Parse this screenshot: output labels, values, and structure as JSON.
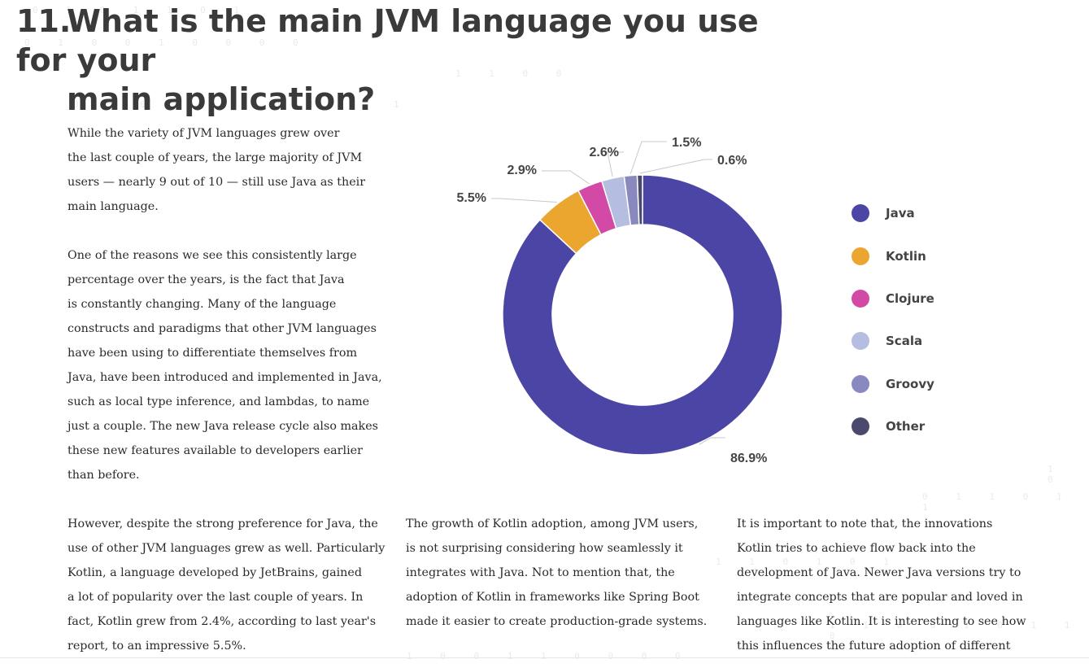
{
  "title": {
    "number": "11.",
    "line1": "What is the main JVM language you use for your",
    "line2": "main application?"
  },
  "paragraphs": {
    "p1": [
      "While the variety of JVM languages grew over",
      "the last couple of years, the large majority of JVM",
      "users — nearly 9 out of 10 — still use Java as their",
      "main language."
    ],
    "p2": [
      "One of the reasons we see this consistently large",
      "percentage over the years, is the fact that Java",
      "is constantly changing. Many of the language",
      "constructs and paradigms that other JVM languages",
      "have been using to differentiate themselves from",
      "Java, have been introduced and implemented in Java,",
      "such as local type inference, and lambdas, to name",
      "just a couple. The new Java release cycle also makes",
      "these new features available to developers earlier",
      "than before."
    ],
    "p3": [
      "However, despite the strong preference for Java, the",
      "use of other JVM languages grew as well. Particularly",
      "Kotlin, a language developed by JetBrains, gained",
      "a lot of popularity over the last couple of years. In",
      "fact, Kotlin grew from 2.4%, according to last year's",
      "report, to an impressive 5.5%."
    ],
    "p4": [
      "The growth of Kotlin adoption, among JVM users,",
      "is not surprising considering how seamlessly it",
      "integrates with Java. Not to mention that, the",
      "adoption of Kotlin in frameworks like Spring Boot",
      "made it easier to create production-grade systems."
    ],
    "p5": [
      "It is important to note that, the innovations",
      "Kotlin tries to achieve flow back into the",
      "development of Java. Newer Java versions try to",
      "integrate concepts that are popular and loved in",
      "languages like Kotlin. It is interesting to see how",
      "this influences the future adoption of different"
    ]
  },
  "chart_data": {
    "type": "pie",
    "variant": "donut",
    "title": "",
    "slices": [
      {
        "name": "Java",
        "value": 86.9,
        "label": "86.9%",
        "color": "#4b45a6"
      },
      {
        "name": "Kotlin",
        "value": 5.5,
        "label": "5.5%",
        "color": "#eba62f"
      },
      {
        "name": "Clojure",
        "value": 2.9,
        "label": "2.9%",
        "color": "#d24aa6"
      },
      {
        "name": "Scala",
        "value": 2.6,
        "label": "2.6%",
        "color": "#b5bde0"
      },
      {
        "name": "Groovy",
        "value": 1.5,
        "label": "1.5%",
        "color": "#8a89bf"
      },
      {
        "name": "Other",
        "value": 0.6,
        "label": "0.6%",
        "color": "#4b4a6e"
      }
    ],
    "legend_position": "right"
  },
  "bg_digit_rows": [
    "0 1 0 1 1 0 1",
    "0 1 0 0 1 0 0 0 0",
    "1 1 0 0",
    "0 0 0 1 1 0 0 0",
    "1",
    "1 0",
    "0 1 1 0 1 1",
    "1 1 0 1 0 1",
    "1 1 0 0 1 0 1 1 0",
    "1 0 0 1 1 0 0 0 0"
  ],
  "colors": {
    "title": "#3a3a3a",
    "text": "#2a2a2a",
    "label": "#444444"
  }
}
